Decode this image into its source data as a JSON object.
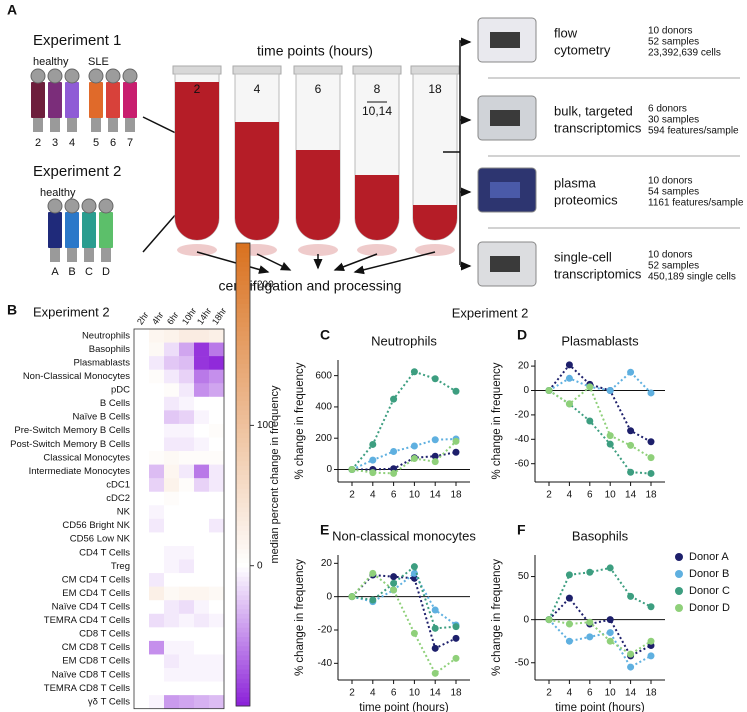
{
  "panel_a": {
    "label": "A",
    "experiment_1": {
      "title": "Experiment 1",
      "groups": [
        "healthy",
        "SLE"
      ],
      "donors": [
        "2",
        "3",
        "4",
        "5",
        "6",
        "7"
      ]
    },
    "experiment_2": {
      "title": "Experiment 2",
      "group": "healthy",
      "donors": [
        "A",
        "B",
        "C",
        "D"
      ]
    },
    "time_points_title": "time points (hours)",
    "tube_labels": [
      "2",
      "4",
      "6",
      "8",
      "18"
    ],
    "tube_sublabel": "10,14",
    "processing": "centrifugation and processing",
    "platforms": [
      {
        "name": [
          "flow",
          "cytometry"
        ],
        "stats": [
          "10 donors",
          "52 samples",
          "23,392,639 cells"
        ]
      },
      {
        "name": [
          "bulk, targeted",
          "transcriptomics"
        ],
        "stats": [
          "6 donors",
          "30 samples",
          "594 features/sample"
        ]
      },
      {
        "name": [
          "plasma",
          "proteomics"
        ],
        "stats": [
          "10 donors",
          "54 samples",
          "1161 features/sample"
        ]
      },
      {
        "name": [
          "single-cell",
          "transcriptomics"
        ],
        "stats": [
          "10 donors",
          "52 samples",
          "450,189 single cells"
        ]
      }
    ]
  },
  "experiment_2_header": "Experiment 2",
  "chart_data": [
    {
      "type": "heatmap",
      "label": "B",
      "title": "Experiment 2",
      "columns": [
        "2hr",
        "4hr",
        "6hr",
        "10hr",
        "14hr",
        "18hr"
      ],
      "rows": [
        "Neutrophils",
        "Basophils",
        "Plasmablasts",
        "Non-Classical Monocytes",
        "pDC",
        "B Cells",
        "Naïve B Cells",
        "Pre-Switch Memory B Cells",
        "Post-Switch Memory B Cells",
        "Classical Monocytes",
        "Intermediate Monocytes",
        "cDC1",
        "cDC2",
        "NK",
        "CD56 Bright NK",
        "CD56 Low NK",
        "CD4 T Cells",
        "Treg",
        "CM CD4 T Cells",
        "EM CD4 T Cells",
        "Naïve CD4 T Cells",
        "TEMRA CD4 T Cells",
        "CD8 T Cells",
        "CM CD8 T Cells",
        "EM CD8 T Cells",
        "Naïve CD8 T Cells",
        "TEMRA CD8 T Cells",
        "γδ T Cells"
      ],
      "values": [
        [
          0,
          15,
          20,
          30,
          30,
          25
        ],
        [
          0,
          10,
          -15,
          -40,
          -90,
          -60
        ],
        [
          0,
          -10,
          -25,
          -30,
          -90,
          -95
        ],
        [
          0,
          5,
          -10,
          -20,
          -60,
          -50
        ],
        [
          0,
          0,
          5,
          -10,
          -50,
          -40
        ],
        [
          0,
          0,
          -10,
          -5,
          0,
          0
        ],
        [
          0,
          0,
          -25,
          -20,
          -5,
          0
        ],
        [
          0,
          0,
          -5,
          -5,
          0,
          5
        ],
        [
          0,
          0,
          -10,
          -10,
          -5,
          0
        ],
        [
          0,
          5,
          10,
          5,
          5,
          5
        ],
        [
          0,
          -30,
          15,
          -10,
          -60,
          -10
        ],
        [
          0,
          -20,
          20,
          5,
          -20,
          -10
        ],
        [
          0,
          0,
          5,
          0,
          0,
          0
        ],
        [
          0,
          -5,
          0,
          0,
          0,
          0
        ],
        [
          0,
          -10,
          0,
          0,
          0,
          -10
        ],
        [
          0,
          0,
          0,
          0,
          0,
          0
        ],
        [
          0,
          0,
          -5,
          -5,
          0,
          0
        ],
        [
          0,
          0,
          -5,
          -10,
          0,
          0
        ],
        [
          0,
          -10,
          0,
          0,
          0,
          0
        ],
        [
          0,
          25,
          10,
          15,
          15,
          10
        ],
        [
          0,
          0,
          -10,
          -15,
          -5,
          0
        ],
        [
          0,
          -15,
          -10,
          -5,
          -10,
          -5
        ],
        [
          0,
          0,
          0,
          0,
          0,
          0
        ],
        [
          0,
          -50,
          -5,
          -5,
          0,
          0
        ],
        [
          0,
          0,
          -10,
          -5,
          -5,
          -5
        ],
        [
          0,
          0,
          -5,
          -5,
          -5,
          -5
        ],
        [
          0,
          0,
          0,
          0,
          0,
          0
        ],
        [
          0,
          -5,
          -45,
          -40,
          -35,
          -30
        ]
      ],
      "zlim": [
        -100,
        230
      ],
      "zticks": [
        0,
        100,
        200
      ],
      "colors": {
        "low": "#8a1fd8",
        "mid": "#ffffff",
        "high": "#d9711e"
      },
      "colorbar_label": "median percent change in frequency"
    },
    {
      "type": "line",
      "label": "C",
      "title": "Neutrophils",
      "ylabel": "% change in frequency",
      "categories": [
        "2",
        "4",
        "6",
        "10",
        "14",
        "18"
      ],
      "ylim": [
        -80,
        700
      ],
      "yticks": [
        0,
        200,
        400,
        600
      ],
      "series": [
        {
          "name": "Donor A",
          "color": "#1d1f6b",
          "values": [
            0,
            0,
            5,
            75,
            85,
            110
          ]
        },
        {
          "name": "Donor B",
          "color": "#5fb0e0",
          "values": [
            0,
            60,
            115,
            150,
            190,
            195
          ]
        },
        {
          "name": "Donor C",
          "color": "#3d9e80",
          "values": [
            0,
            160,
            450,
            625,
            580,
            500
          ]
        },
        {
          "name": "Donor D",
          "color": "#8fd07a",
          "values": [
            0,
            -20,
            -25,
            70,
            50,
            180
          ]
        }
      ]
    },
    {
      "type": "line",
      "label": "D",
      "title": "Plasmablasts",
      "ylabel": "% change in frequency",
      "categories": [
        "2",
        "4",
        "6",
        "10",
        "14",
        "18"
      ],
      "ylim": [
        -75,
        25
      ],
      "yticks": [
        -60,
        -40,
        -20,
        0,
        20
      ],
      "series": [
        {
          "name": "Donor A",
          "color": "#1d1f6b",
          "values": [
            0,
            21,
            5,
            0,
            -33,
            -42
          ]
        },
        {
          "name": "Donor B",
          "color": "#5fb0e0",
          "values": [
            0,
            10,
            3,
            0,
            15,
            -2
          ]
        },
        {
          "name": "Donor C",
          "color": "#3d9e80",
          "values": [
            0,
            -11,
            -25,
            -44,
            -67,
            -68
          ]
        },
        {
          "name": "Donor D",
          "color": "#8fd07a",
          "values": [
            0,
            -11,
            3,
            -37,
            -45,
            -55
          ]
        }
      ]
    },
    {
      "type": "line",
      "label": "E",
      "title": "Non-classical monocytes",
      "ylabel": "% change in frequency",
      "xlabel": "time point (hours)",
      "categories": [
        "2",
        "4",
        "6",
        "10",
        "14",
        "18"
      ],
      "ylim": [
        -50,
        25
      ],
      "yticks": [
        -40,
        -20,
        0,
        20
      ],
      "series": [
        {
          "name": "Donor A",
          "color": "#1d1f6b",
          "values": [
            0,
            13,
            12,
            11,
            -31,
            -25
          ]
        },
        {
          "name": "Donor B",
          "color": "#5fb0e0",
          "values": [
            0,
            -3,
            4,
            14,
            -8,
            -17
          ]
        },
        {
          "name": "Donor C",
          "color": "#3d9e80",
          "values": [
            0,
            -2,
            8,
            18,
            -19,
            -18
          ]
        },
        {
          "name": "Donor D",
          "color": "#8fd07a",
          "values": [
            0,
            14,
            4,
            -22,
            -46,
            -37
          ]
        }
      ]
    },
    {
      "type": "line",
      "label": "F",
      "title": "Basophils",
      "ylabel": "% change in frequency",
      "xlabel": "time point (hours)",
      "categories": [
        "2",
        "4",
        "6",
        "10",
        "14",
        "18"
      ],
      "ylim": [
        -70,
        75
      ],
      "yticks": [
        -50,
        0,
        50
      ],
      "legend": "right",
      "series": [
        {
          "name": "Donor A",
          "color": "#1d1f6b",
          "values": [
            0,
            25,
            -5,
            0,
            -42,
            -30
          ]
        },
        {
          "name": "Donor B",
          "color": "#5fb0e0",
          "values": [
            0,
            -25,
            -20,
            -15,
            -55,
            -42
          ]
        },
        {
          "name": "Donor C",
          "color": "#3d9e80",
          "values": [
            0,
            52,
            55,
            60,
            27,
            15
          ]
        },
        {
          "name": "Donor D",
          "color": "#8fd07a",
          "values": [
            0,
            -5,
            -3,
            -25,
            -40,
            -25
          ]
        }
      ]
    }
  ]
}
